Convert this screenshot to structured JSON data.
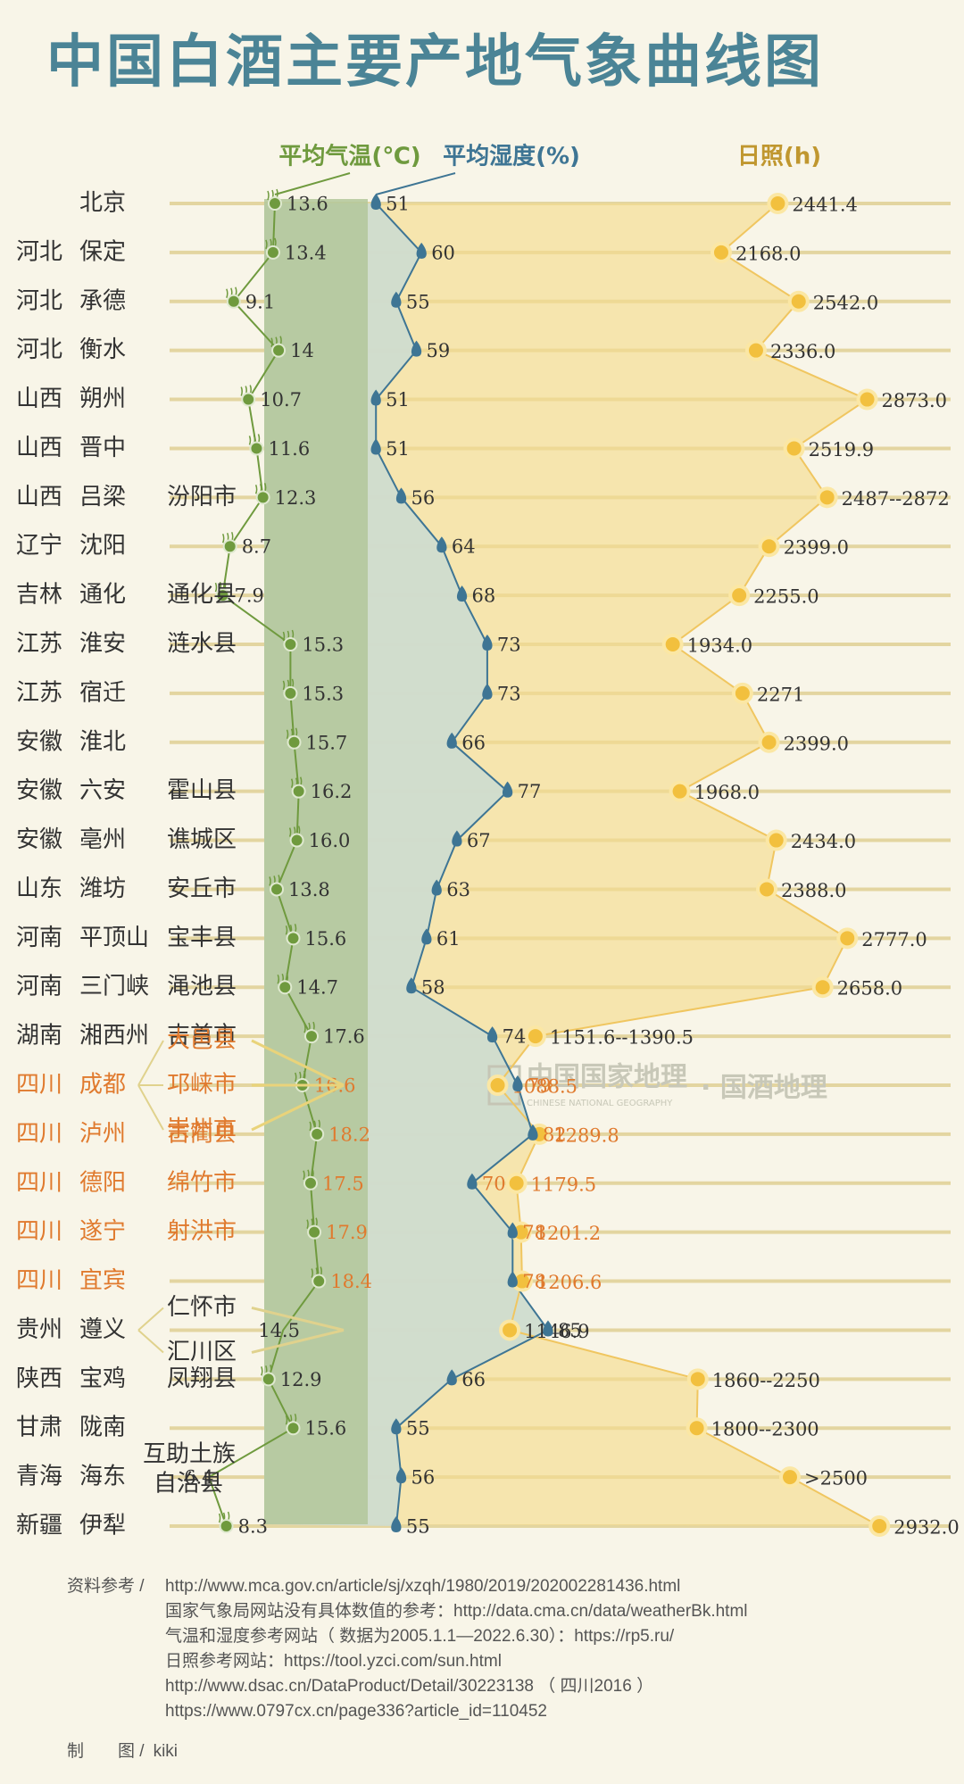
{
  "title": "中国白酒主要产地气象曲线图",
  "headers": {
    "temp": "平均气温(℃)",
    "humidity": "平均湿度(%)",
    "sun": "日照(h)"
  },
  "watermark": {
    "brand": "中国国家地理",
    "sub": "CHINESE NATIONAL GEOGRAPHY",
    "tail": "· 国酒地理"
  },
  "colors": {
    "title": "#4b8496",
    "temp": "#6f9a3e",
    "humidity": "#3e7594",
    "sun": "#f2c03e",
    "sichuan": "#e07a2e",
    "text": "#333333",
    "grid": "#e3d5a0"
  },
  "chart_data": {
    "type": "line",
    "series": [
      {
        "name": "平均气温(℃)",
        "values": [
          13.6,
          13.4,
          9.1,
          14,
          10.7,
          11.6,
          12.3,
          8.7,
          7.9,
          15.3,
          15.3,
          15.7,
          16.2,
          16.0,
          13.8,
          15.6,
          14.7,
          17.6,
          16.6,
          18.2,
          17.5,
          17.9,
          18.4,
          14.5,
          12.9,
          15.6,
          6.4,
          8.3
        ]
      },
      {
        "name": "平均湿度(%)",
        "values": [
          51,
          60,
          55,
          59,
          51,
          51,
          56,
          64,
          68,
          73,
          73,
          66,
          77,
          67,
          63,
          61,
          58,
          74,
          79,
          82,
          70,
          78,
          78,
          85,
          66,
          55,
          56,
          55
        ]
      },
      {
        "name": "日照(h)",
        "values": [
          2441.4,
          2168.0,
          2542.0,
          2336.0,
          2873.0,
          2519.9,
          2679.5,
          2399.0,
          2255.0,
          1934.0,
          2271,
          2399.0,
          1968.0,
          2434.0,
          2388.0,
          2777.0,
          2658.0,
          1271,
          1088.5,
          1289.8,
          1179.5,
          1201.2,
          1206.6,
          1146.9,
          2055,
          2050,
          2500,
          2932.0
        ]
      }
    ],
    "labels": {
      "temp": [
        "13.6",
        "13.4",
        "9.1",
        "14",
        "10.7",
        "11.6",
        "12.3",
        "8.7",
        "7.9",
        "15.3",
        "15.3",
        "15.7",
        "16.2",
        "16.0",
        "13.8",
        "15.6",
        "14.7",
        "17.6",
        "16.6",
        "18.2",
        "17.5",
        "17.9",
        "18.4",
        "14.5",
        "12.9",
        "15.6",
        "6.4",
        "8.3"
      ],
      "humidity": [
        "51",
        "60",
        "55",
        "59",
        "51",
        "51",
        "56",
        "64",
        "68",
        "73",
        "73",
        "66",
        "77",
        "67",
        "63",
        "61",
        "58",
        "74",
        "79",
        "82",
        "70",
        "78",
        "78",
        "85",
        "66",
        "55",
        "56",
        "55"
      ],
      "sun": [
        "2441.4",
        "2168.0",
        "2542.0",
        "2336.0",
        "2873.0",
        "2519.9",
        "2487--2872",
        "2399.0",
        "2255.0",
        "1934.0",
        "2271",
        "2399.0",
        "1968.0",
        "2434.0",
        "2388.0",
        "2777.0",
        "2658.0",
        "1151.6--1390.5",
        "1088.5",
        "1289.8",
        "1179.5",
        "1201.2",
        "1206.6",
        "1146.9",
        "1860--2250",
        "1800--2300",
        ">2500",
        "2932.0"
      ]
    },
    "rows": [
      {
        "prov": "",
        "city": "北京",
        "county": "",
        "sichuan": false
      },
      {
        "prov": "河北",
        "city": "保定",
        "county": "",
        "sichuan": false
      },
      {
        "prov": "河北",
        "city": "承德",
        "county": "",
        "sichuan": false
      },
      {
        "prov": "河北",
        "city": "衡水",
        "county": "",
        "sichuan": false
      },
      {
        "prov": "山西",
        "city": "朔州",
        "county": "",
        "sichuan": false
      },
      {
        "prov": "山西",
        "city": "晋中",
        "county": "",
        "sichuan": false
      },
      {
        "prov": "山西",
        "city": "吕梁",
        "county": "汾阳市",
        "sichuan": false
      },
      {
        "prov": "辽宁",
        "city": "沈阳",
        "county": "",
        "sichuan": false
      },
      {
        "prov": "吉林",
        "city": "通化",
        "county": "通化县",
        "sichuan": false
      },
      {
        "prov": "江苏",
        "city": "淮安",
        "county": "涟水县",
        "sichuan": false
      },
      {
        "prov": "江苏",
        "city": "宿迁",
        "county": "",
        "sichuan": false
      },
      {
        "prov": "安徽",
        "city": "淮北",
        "county": "",
        "sichuan": false
      },
      {
        "prov": "安徽",
        "city": "六安",
        "county": "霍山县",
        "sichuan": false
      },
      {
        "prov": "安徽",
        "city": "亳州",
        "county": "谯城区",
        "sichuan": false
      },
      {
        "prov": "山东",
        "city": "潍坊",
        "county": "安丘市",
        "sichuan": false
      },
      {
        "prov": "河南",
        "city": "平顶山",
        "county": "宝丰县",
        "sichuan": false
      },
      {
        "prov": "河南",
        "city": "三门峡",
        "county": "渑池县",
        "sichuan": false
      },
      {
        "prov": "湖南",
        "city": "湘西州",
        "county": "吉首市",
        "sichuan": false
      },
      {
        "prov": "四川",
        "city": "成都",
        "county": [
          "大邑县",
          "邛崃市",
          "崇州市"
        ],
        "sichuan": true
      },
      {
        "prov": "四川",
        "city": "泸州",
        "county": "古蔺县",
        "sichuan": true
      },
      {
        "prov": "四川",
        "city": "德阳",
        "county": "绵竹市",
        "sichuan": true
      },
      {
        "prov": "四川",
        "city": "遂宁",
        "county": "射洪市",
        "sichuan": true
      },
      {
        "prov": "四川",
        "city": "宜宾",
        "county": "",
        "sichuan": true
      },
      {
        "prov": "贵州",
        "city": "遵义",
        "county": [
          "仁怀市",
          "汇川区"
        ],
        "sichuan": false
      },
      {
        "prov": "陕西",
        "city": "宝鸡",
        "county": "凤翔县",
        "sichuan": false
      },
      {
        "prov": "甘肃",
        "city": "陇南",
        "county": "",
        "sichuan": false
      },
      {
        "prov": "青海",
        "city": "海东",
        "county": [
          "互助土族",
          "自治县"
        ],
        "sichuan": false
      },
      {
        "prov": "新疆",
        "city": "伊犁",
        "county": "",
        "sichuan": false
      }
    ]
  },
  "sources": {
    "label": "资料参考 /",
    "lines": [
      "http://www.mca.gov.cn/article/sj/xzqh/1980/2019/202002281436.html",
      "国家气象局网站没有具体数值的参考：http://data.cma.cn/data/weatherBk.html",
      "气温和湿度参考网站（ 数据为2005.1.1—2022.6.30）：https://rp5.ru/",
      "日照参考网站：https://tool.yzci.com/sun.html",
      "http://www.dsac.cn/DataProduct/Detail/30223138  （ 四川2016 ）",
      "https://www.0797cx.cn/page336?article_id=110452"
    ]
  },
  "maker": {
    "label": "制　　图 /",
    "name": "kiki"
  }
}
